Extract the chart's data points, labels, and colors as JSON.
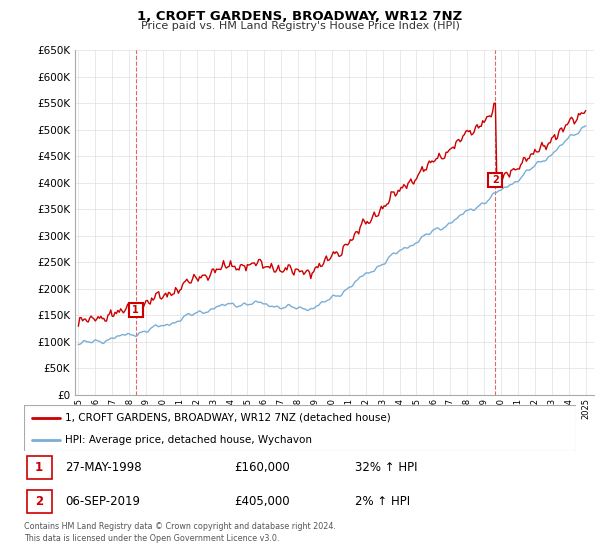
{
  "title": "1, CROFT GARDENS, BROADWAY, WR12 7NZ",
  "subtitle": "Price paid vs. HM Land Registry's House Price Index (HPI)",
  "legend_line1": "1, CROFT GARDENS, BROADWAY, WR12 7NZ (detached house)",
  "legend_line2": "HPI: Average price, detached house, Wychavon",
  "transaction1_label": "1",
  "transaction1_date": "27-MAY-1998",
  "transaction1_price": "£160,000",
  "transaction1_hpi": "32% ↑ HPI",
  "transaction2_label": "2",
  "transaction2_date": "06-SEP-2019",
  "transaction2_price": "£405,000",
  "transaction2_hpi": "2% ↑ HPI",
  "footer": "Contains HM Land Registry data © Crown copyright and database right 2024.\nThis data is licensed under the Open Government Licence v3.0.",
  "red_color": "#cc0000",
  "blue_color": "#7aaed6",
  "ylim_min": 0,
  "ylim_max": 650000,
  "transaction1_year": 1998.38,
  "transaction1_value": 160000,
  "transaction2_year": 2019.67,
  "transaction2_value": 405000,
  "bg_color": "#ffffff",
  "grid_color": "#e0e0e0"
}
